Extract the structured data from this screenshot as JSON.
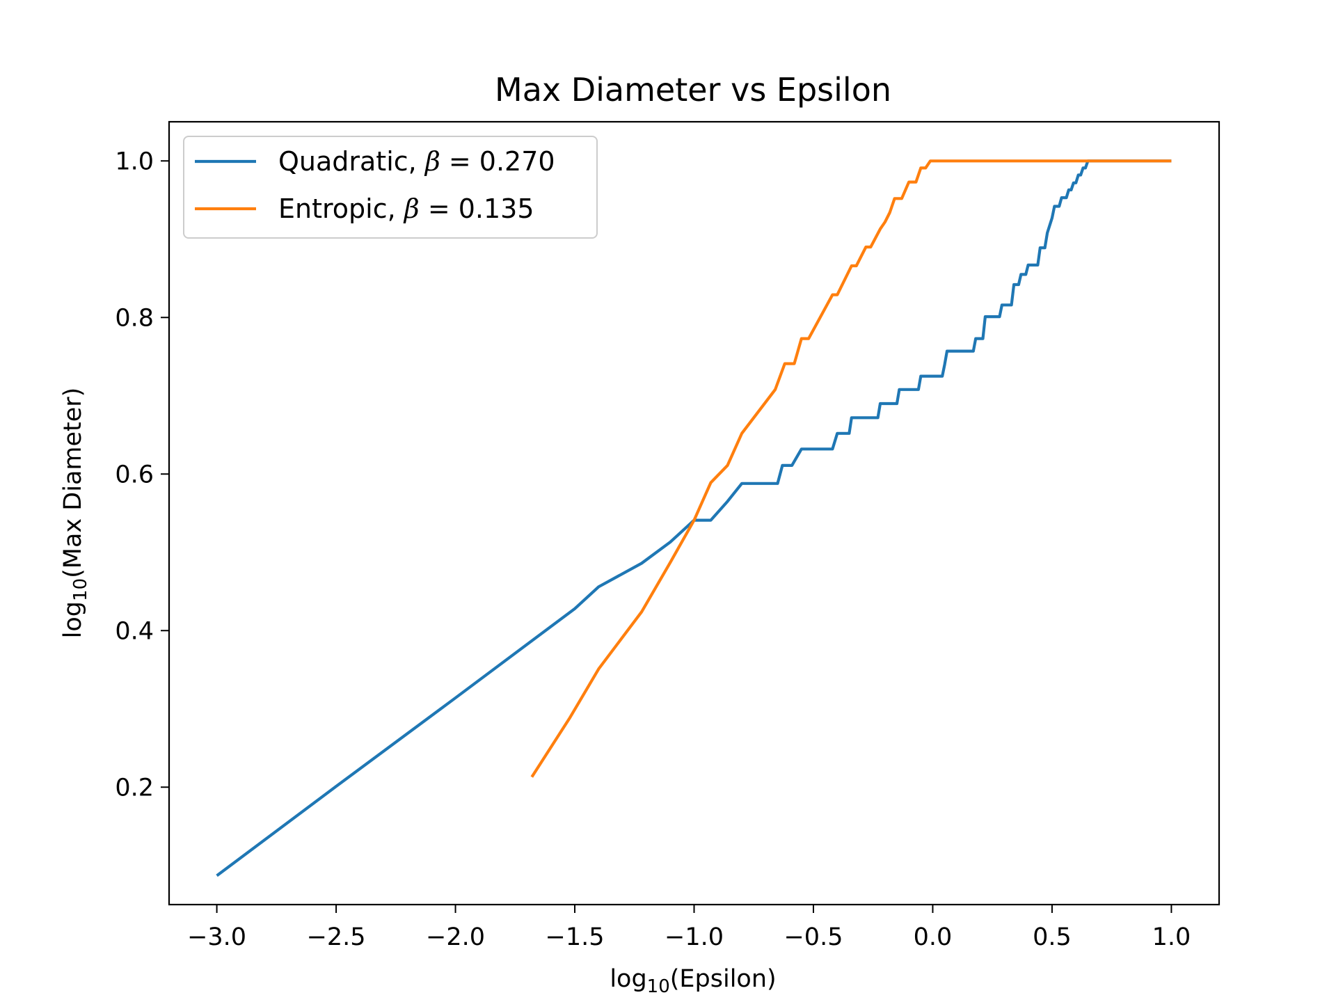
{
  "chart_data": {
    "type": "line",
    "title": "Max Diameter vs Epsilon",
    "xlabel": "log10(Epsilon)",
    "ylabel": "log10(Max Diameter)",
    "xlim": [
      -3.2,
      1.2
    ],
    "ylim": [
      0.05,
      1.05
    ],
    "xticks": [
      -3.0,
      -2.5,
      -2.0,
      -1.5,
      -1.0,
      -0.5,
      0.0,
      0.5,
      1.0
    ],
    "xtick_labels": [
      "−3.0",
      "−2.5",
      "−2.0",
      "−1.5",
      "−1.0",
      "−0.5",
      "0.0",
      "0.5",
      "1.0"
    ],
    "yticks": [
      0.2,
      0.4,
      0.6,
      0.8,
      1.0
    ],
    "ytick_labels": [
      "0.2",
      "0.4",
      "0.6",
      "0.8",
      "1.0"
    ],
    "grid": false,
    "legend_position": "top-left",
    "series": [
      {
        "name": "Quadratic, β = 0.270",
        "legend_prefix": "Quadratic, ",
        "legend_symbol": "β",
        "legend_suffix": " = 0.270",
        "color": "#1f77b4",
        "points": [
          [
            -3.0,
            0.087
          ],
          [
            -2.5,
            0.201
          ],
          [
            -2.0,
            0.314
          ],
          [
            -1.5,
            0.428
          ],
          [
            -1.4,
            0.456
          ],
          [
            -1.22,
            0.486
          ],
          [
            -1.1,
            0.513
          ],
          [
            -1.0,
            0.541
          ],
          [
            -0.93,
            0.541
          ],
          [
            -0.86,
            0.565
          ],
          [
            -0.8,
            0.588
          ],
          [
            -0.65,
            0.588
          ],
          [
            -0.63,
            0.611
          ],
          [
            -0.59,
            0.611
          ],
          [
            -0.55,
            0.632
          ],
          [
            -0.42,
            0.632
          ],
          [
            -0.4,
            0.652
          ],
          [
            -0.35,
            0.652
          ],
          [
            -0.34,
            0.672
          ],
          [
            -0.23,
            0.672
          ],
          [
            -0.22,
            0.69
          ],
          [
            -0.15,
            0.69
          ],
          [
            -0.14,
            0.708
          ],
          [
            -0.06,
            0.708
          ],
          [
            -0.05,
            0.725
          ],
          [
            0.04,
            0.725
          ],
          [
            0.05,
            0.74
          ],
          [
            0.06,
            0.757
          ],
          [
            0.17,
            0.757
          ],
          [
            0.18,
            0.773
          ],
          [
            0.21,
            0.773
          ],
          [
            0.22,
            0.801
          ],
          [
            0.28,
            0.801
          ],
          [
            0.29,
            0.816
          ],
          [
            0.33,
            0.816
          ],
          [
            0.34,
            0.842
          ],
          [
            0.36,
            0.842
          ],
          [
            0.37,
            0.855
          ],
          [
            0.39,
            0.855
          ],
          [
            0.4,
            0.867
          ],
          [
            0.44,
            0.867
          ],
          [
            0.45,
            0.889
          ],
          [
            0.47,
            0.889
          ],
          [
            0.48,
            0.908
          ],
          [
            0.5,
            0.927
          ],
          [
            0.51,
            0.942
          ],
          [
            0.53,
            0.942
          ],
          [
            0.54,
            0.953
          ],
          [
            0.56,
            0.953
          ],
          [
            0.57,
            0.963
          ],
          [
            0.58,
            0.963
          ],
          [
            0.59,
            0.972
          ],
          [
            0.6,
            0.972
          ],
          [
            0.61,
            0.982
          ],
          [
            0.62,
            0.982
          ],
          [
            0.63,
            0.991
          ],
          [
            0.64,
            0.991
          ],
          [
            0.65,
            1.0
          ],
          [
            1.0,
            1.0
          ]
        ]
      },
      {
        "name": "Entropic, β = 0.135",
        "legend_prefix": "Entropic, ",
        "legend_symbol": "β",
        "legend_suffix": " = 0.135",
        "color": "#ff7f0e",
        "points": [
          [
            -1.68,
            0.213
          ],
          [
            -1.52,
            0.289
          ],
          [
            -1.4,
            0.351
          ],
          [
            -1.22,
            0.424
          ],
          [
            -1.1,
            0.487
          ],
          [
            -1.0,
            0.541
          ],
          [
            -0.93,
            0.589
          ],
          [
            -0.86,
            0.611
          ],
          [
            -0.8,
            0.652
          ],
          [
            -0.66,
            0.708
          ],
          [
            -0.62,
            0.741
          ],
          [
            -0.58,
            0.741
          ],
          [
            -0.55,
            0.773
          ],
          [
            -0.52,
            0.773
          ],
          [
            -0.42,
            0.829
          ],
          [
            -0.4,
            0.829
          ],
          [
            -0.34,
            0.866
          ],
          [
            -0.32,
            0.866
          ],
          [
            -0.28,
            0.89
          ],
          [
            -0.26,
            0.89
          ],
          [
            -0.22,
            0.913
          ],
          [
            -0.2,
            0.922
          ],
          [
            -0.18,
            0.934
          ],
          [
            -0.16,
            0.952
          ],
          [
            -0.13,
            0.952
          ],
          [
            -0.1,
            0.973
          ],
          [
            -0.07,
            0.973
          ],
          [
            -0.05,
            0.991
          ],
          [
            -0.03,
            0.991
          ],
          [
            -0.01,
            1.0
          ],
          [
            1.0,
            1.0
          ]
        ]
      }
    ]
  }
}
